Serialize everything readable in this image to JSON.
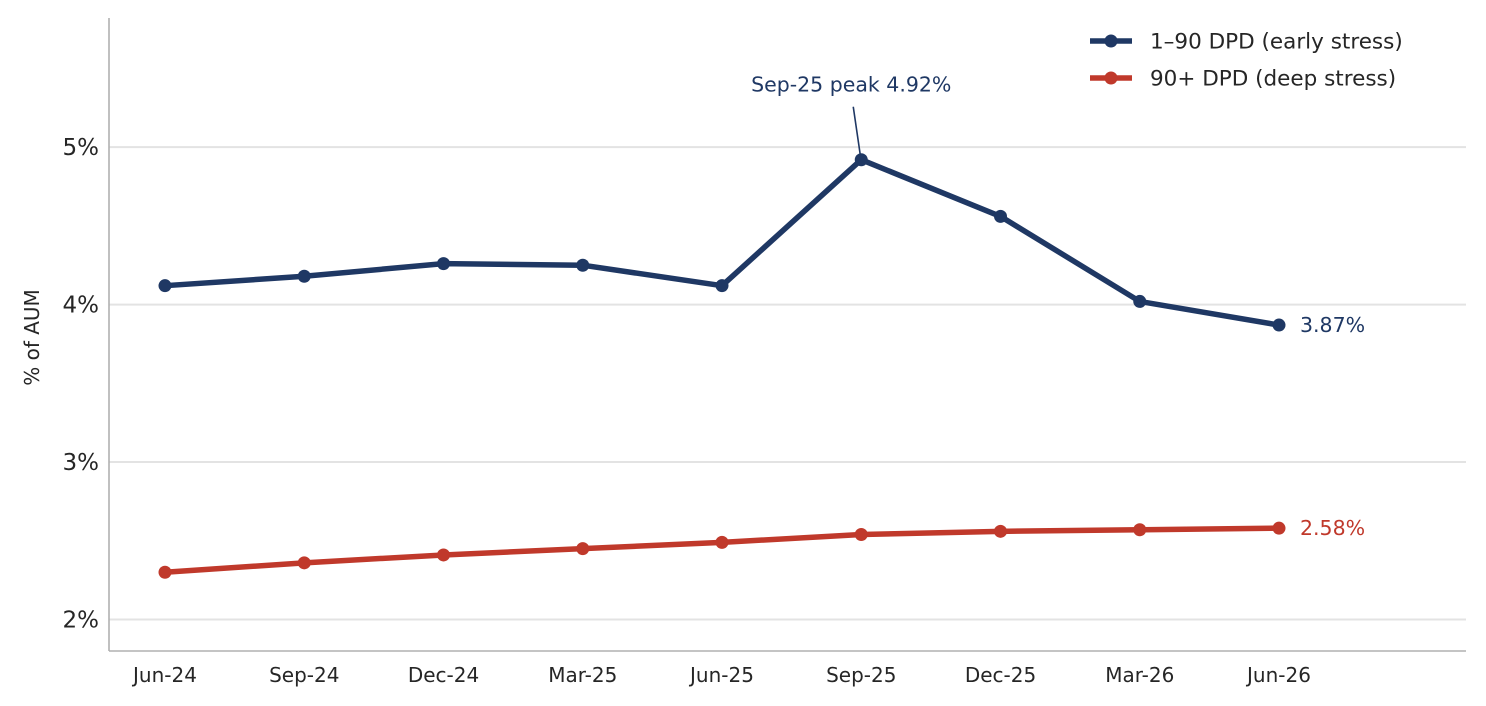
{
  "chart_data": {
    "type": "line",
    "title": "",
    "xlabel": "",
    "ylabel": "% of AUM",
    "categories": [
      "Jun-24",
      "Sep-24",
      "Dec-24",
      "Mar-25",
      "Jun-25",
      "Sep-25",
      "Dec-25",
      "Mar-26",
      "Jun-26"
    ],
    "ylim": [
      1.8,
      5.82
    ],
    "yticks": [
      2,
      3,
      4,
      5
    ],
    "ytick_labels": [
      "2%",
      "3%",
      "4%",
      "5%"
    ],
    "grid": "horizontal",
    "legend_position": "top-right",
    "series": [
      {
        "name": "1–90 DPD (early stress)",
        "color": "#1f3864",
        "values": [
          4.12,
          4.18,
          4.26,
          4.25,
          4.12,
          4.92,
          4.56,
          4.02,
          3.87
        ],
        "end_label": "3.87%"
      },
      {
        "name": "90+ DPD (deep stress)",
        "color": "#c0392b",
        "values": [
          2.3,
          2.36,
          2.41,
          2.45,
          2.49,
          2.54,
          2.56,
          2.57,
          2.58
        ],
        "end_label": "2.58%"
      }
    ],
    "annotation": {
      "text": "Sep-25 peak 4.92%",
      "category": "Sep-25",
      "series": 0,
      "color": "#1f3864"
    }
  }
}
